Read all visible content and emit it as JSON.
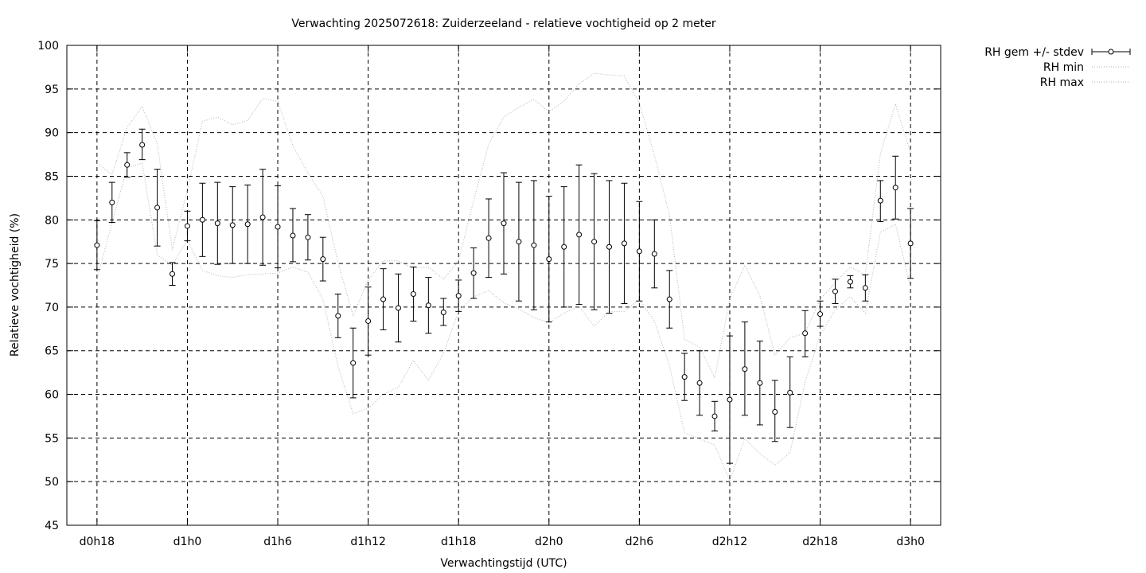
{
  "chart_data": {
    "type": "line",
    "title": "Verwachting 2025072618: Zuiderzeeland - relatieve vochtigheid op 2 meter",
    "xlabel": "Verwachtingstijd (UTC)",
    "ylabel": "Relatieve vochtigheid (%)",
    "ylim": [
      45,
      100
    ],
    "xlim": [
      -2,
      56
    ],
    "grid": true,
    "legend_position": "outside-top-right",
    "x_ticks": [
      {
        "value": 0,
        "label": "d0h18"
      },
      {
        "value": 6,
        "label": "d1h0"
      },
      {
        "value": 12,
        "label": "d1h6"
      },
      {
        "value": 18,
        "label": "d1h12"
      },
      {
        "value": 24,
        "label": "d1h18"
      },
      {
        "value": 30,
        "label": "d2h0"
      },
      {
        "value": 36,
        "label": "d2h6"
      },
      {
        "value": 42,
        "label": "d2h12"
      },
      {
        "value": 48,
        "label": "d2h18"
      },
      {
        "value": 54,
        "label": "d3h0"
      }
    ],
    "y_ticks": [
      45,
      50,
      55,
      60,
      65,
      70,
      75,
      80,
      85,
      90,
      95,
      100
    ],
    "x": [
      0,
      1,
      2,
      3,
      4,
      5,
      6,
      7,
      8,
      9,
      10,
      11,
      12,
      13,
      14,
      15,
      16,
      17,
      18,
      19,
      20,
      21,
      22,
      23,
      24,
      25,
      26,
      27,
      28,
      29,
      30,
      31,
      32,
      33,
      34,
      35,
      36,
      37,
      38,
      39,
      40,
      41,
      42,
      43,
      44,
      45,
      46,
      47,
      48,
      49,
      50,
      51,
      52,
      53,
      54
    ],
    "series": [
      {
        "name": "RH gem +/- stdev",
        "style": "errorbars",
        "color": "#000000",
        "mean": [
          77.1,
          82.0,
          86.3,
          88.6,
          81.4,
          73.8,
          79.3,
          80.0,
          79.6,
          79.4,
          79.5,
          80.3,
          79.2,
          78.2,
          78.0,
          75.5,
          69.0,
          63.6,
          68.4,
          70.9,
          69.9,
          71.5,
          70.2,
          69.4,
          71.3,
          73.9,
          77.9,
          79.6,
          77.5,
          77.1,
          75.5,
          76.9,
          78.3,
          77.5,
          76.9,
          77.3,
          76.4,
          76.1,
          70.9,
          62.0,
          61.3,
          57.5,
          59.4,
          62.9,
          61.3,
          58.0,
          60.2,
          67.0,
          69.2,
          71.8,
          72.9,
          72.2,
          82.2,
          83.7,
          77.3
        ],
        "lower": [
          74.3,
          79.7,
          84.9,
          86.9,
          77.0,
          72.5,
          77.6,
          75.8,
          74.9,
          75.0,
          75.0,
          74.8,
          74.5,
          75.2,
          75.4,
          73.0,
          66.5,
          59.6,
          64.5,
          67.4,
          66.0,
          68.4,
          67.0,
          67.9,
          69.5,
          71.0,
          73.4,
          73.8,
          70.7,
          69.7,
          68.3,
          70.0,
          70.3,
          69.7,
          69.3,
          70.4,
          70.7,
          72.2,
          67.6,
          59.3,
          57.6,
          55.8,
          52.1,
          57.6,
          56.5,
          54.6,
          56.2,
          64.3,
          67.8,
          70.4,
          72.2,
          70.7,
          79.8,
          80.1,
          73.3
        ],
        "upper": [
          79.9,
          84.3,
          87.7,
          90.4,
          85.8,
          75.1,
          81.0,
          84.2,
          84.3,
          83.8,
          84.0,
          85.8,
          83.9,
          81.3,
          80.6,
          78.0,
          71.5,
          67.6,
          72.3,
          74.4,
          73.8,
          74.6,
          73.4,
          71.0,
          73.1,
          76.8,
          82.4,
          85.4,
          84.3,
          84.5,
          82.7,
          83.8,
          86.3,
          85.3,
          84.5,
          84.2,
          82.1,
          80.0,
          74.2,
          64.7,
          65.0,
          59.2,
          66.7,
          68.3,
          66.1,
          61.6,
          64.3,
          69.6,
          70.7,
          73.2,
          73.6,
          73.7,
          84.5,
          87.3,
          81.3
        ]
      },
      {
        "name": "RH min",
        "style": "dotted",
        "color": "#b3b3b3",
        "values": [
          73.2,
          79.7,
          86.0,
          86.5,
          76.0,
          74.8,
          77.7,
          74.2,
          73.6,
          73.4,
          73.7,
          73.8,
          73.9,
          74.6,
          74.0,
          70.9,
          63.2,
          57.8,
          58.4,
          60.0,
          60.8,
          63.9,
          61.6,
          64.7,
          69.5,
          71.2,
          71.9,
          70.5,
          69.8,
          68.8,
          68.2,
          69.3,
          70.1,
          67.8,
          69.5,
          69.5,
          70.9,
          68.4,
          63.3,
          55.6,
          54.9,
          54.2,
          50.1,
          55.0,
          53.2,
          51.9,
          53.3,
          61.4,
          66.8,
          69.7,
          71.2,
          69.3,
          78.6,
          79.5,
          72.3
        ]
      },
      {
        "name": "RH max",
        "style": "dotted",
        "color": "#b3b3b3",
        "values": [
          86.5,
          85.2,
          90.6,
          93.0,
          88.7,
          76.6,
          83.4,
          91.3,
          91.8,
          90.9,
          91.4,
          93.9,
          93.6,
          88.5,
          85.4,
          82.7,
          75.1,
          69.0,
          73.1,
          75.3,
          75.3,
          74.5,
          74.6,
          73.2,
          75.3,
          82.2,
          88.7,
          91.8,
          92.9,
          93.8,
          92.4,
          93.6,
          95.6,
          96.8,
          96.6,
          96.5,
          93.4,
          87.4,
          80.6,
          66.3,
          65.4,
          61.9,
          70.9,
          74.8,
          71.3,
          64.5,
          66.5,
          67.0,
          70.9,
          72.8,
          74.6,
          73.7,
          87.6,
          93.3,
          87.7
        ]
      }
    ]
  }
}
